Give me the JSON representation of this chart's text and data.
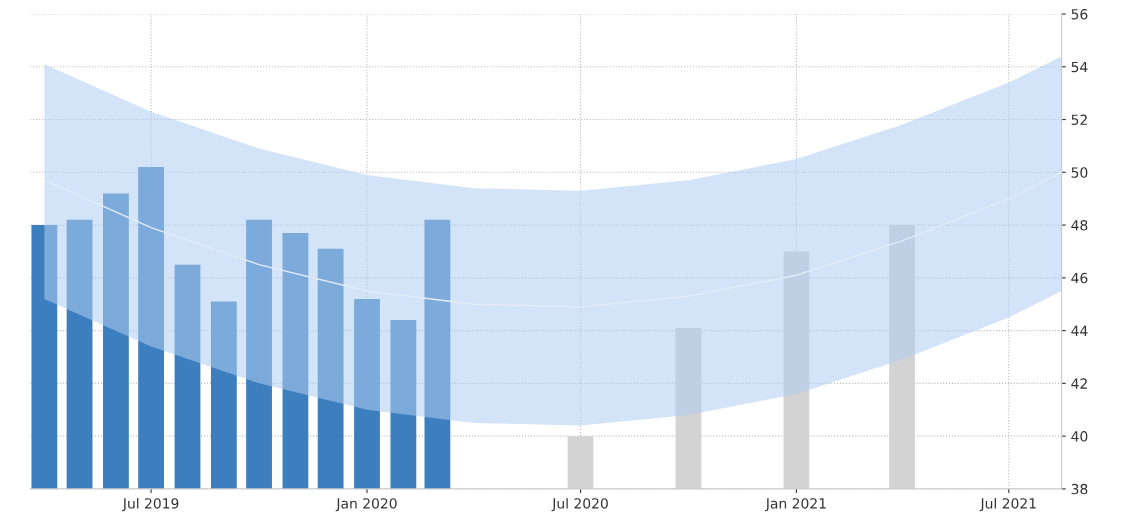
{
  "chart_data": {
    "type": "bar",
    "series": [
      {
        "color": "#3d7ebf",
        "x": [
          "2019-04",
          "2019-05",
          "2019-06",
          "2019-07",
          "2019-08",
          "2019-09",
          "2019-10",
          "2019-11",
          "2019-12",
          "2020-01",
          "2020-02",
          "2020-03"
        ],
        "values": [
          48.0,
          48.2,
          49.2,
          50.2,
          46.5,
          45.1,
          48.2,
          47.7,
          47.1,
          45.2,
          44.4,
          48.2
        ]
      },
      {
        "color": "#d3d3d3",
        "x": [
          "2020-07",
          "2020-10",
          "2021-01",
          "2021-04"
        ],
        "values": [
          40.0,
          44.1,
          47.0,
          48.0
        ]
      },
      {
        "type": "line",
        "color": "#e3ecf7",
        "x": [
          "2019-04",
          "2019-07",
          "2019-10",
          "2020-01",
          "2020-04",
          "2020-07",
          "2020-10",
          "2021-01",
          "2021-04",
          "2021-07",
          "2021-08-15"
        ],
        "values": [
          49.7,
          47.9,
          46.5,
          45.5,
          45.0,
          44.9,
          45.3,
          46.1,
          47.4,
          49.0,
          50.0
        ],
        "lower": [
          45.2,
          43.4,
          42.0,
          41.0,
          40.5,
          40.4,
          40.8,
          41.6,
          42.9,
          44.5,
          45.5
        ],
        "upper": [
          54.1,
          52.3,
          50.9,
          49.9,
          49.4,
          49.3,
          49.7,
          50.5,
          51.8,
          53.4,
          54.4
        ]
      }
    ],
    "xlim": [
      "2019-03-20",
      "2021-08-15"
    ],
    "xticks": [
      {
        "value": "2019-07",
        "label": "Jul 2019"
      },
      {
        "value": "2020-01",
        "label": "Jan 2020"
      },
      {
        "value": "2020-07",
        "label": "Jul 2020"
      },
      {
        "value": "2021-01",
        "label": "Jan 2021"
      },
      {
        "value": "2021-07",
        "label": "Jul 2021"
      }
    ],
    "ylim": [
      38,
      56
    ],
    "yticks": [
      38,
      40,
      42,
      44,
      46,
      48,
      50,
      52,
      54,
      56
    ],
    "grid": true
  }
}
